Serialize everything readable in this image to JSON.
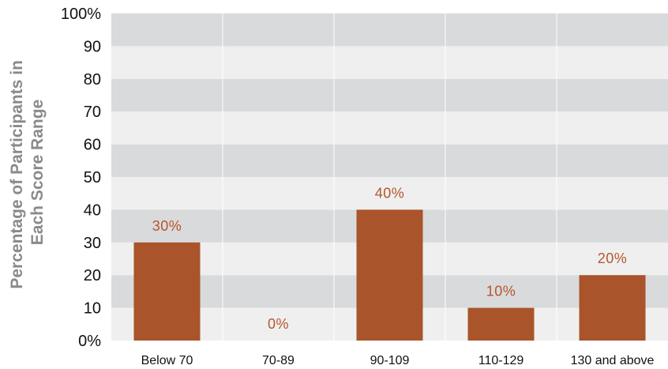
{
  "chart_data": {
    "type": "bar",
    "categories": [
      "Below 70",
      "70-89",
      "90-109",
      "110-129",
      "130 and above"
    ],
    "values": [
      30,
      0,
      40,
      10,
      20
    ],
    "data_labels": [
      "30%",
      "0%",
      "40%",
      "10%",
      "20%"
    ],
    "ylabel_lines": [
      "Percentage of Participants in",
      "Each Score Range"
    ],
    "ylim": [
      0,
      100
    ],
    "yticks": [
      0,
      10,
      20,
      30,
      40,
      50,
      60,
      70,
      80,
      90,
      100
    ],
    "ytick_labels": [
      "0%",
      "10",
      "20",
      "30",
      "40",
      "50",
      "60",
      "70",
      "80",
      "90",
      "100%"
    ],
    "grid": true,
    "colors": {
      "bar": "#a9542a",
      "data_label": "#b5562b",
      "band_light": "#efefef",
      "band_dark": "#d9dadb",
      "divider": "#ffffff"
    }
  }
}
